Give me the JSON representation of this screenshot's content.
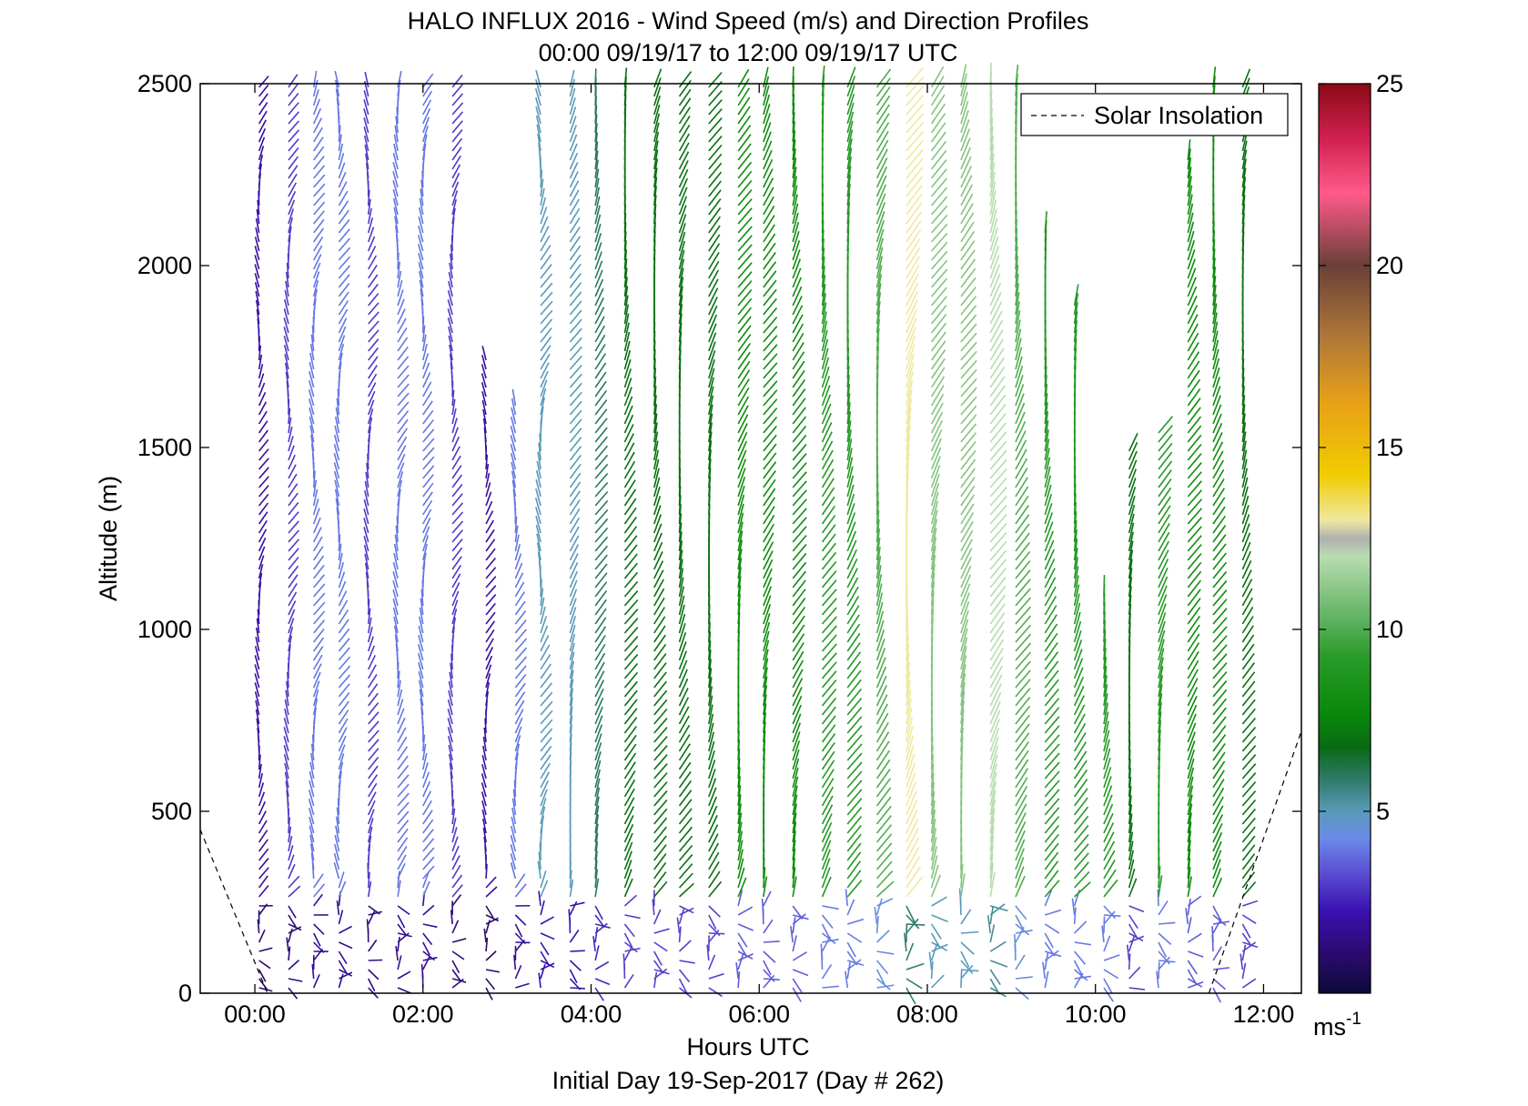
{
  "chart_data": {
    "type": "wind_barb_profile",
    "title": "HALO INFLUX 2016 - Wind Speed (m/s) and Direction Profiles",
    "subtitle": "00:00 09/19/17 to 12:00 09/19/17  UTC",
    "xlabel": "Hours UTC",
    "ylabel": "Altitude (m)",
    "footer": "Initial Day 19-Sep-2017 (Day # 262)",
    "xlim": [
      -0.65,
      12.45
    ],
    "ylim": [
      0,
      2500
    ],
    "x_ticks": [
      {
        "value": 0,
        "label": "00:00"
      },
      {
        "value": 2,
        "label": "02:00"
      },
      {
        "value": 4,
        "label": "04:00"
      },
      {
        "value": 6,
        "label": "06:00"
      },
      {
        "value": 8,
        "label": "08:00"
      },
      {
        "value": 10,
        "label": "10:00"
      },
      {
        "value": 12,
        "label": "12:00"
      }
    ],
    "y_ticks": [
      0,
      500,
      1000,
      1500,
      2000,
      2500
    ],
    "legend": {
      "label": "Solar Insolation",
      "position": "top-right"
    },
    "colorbar": {
      "unit_base": "ms",
      "unit_exp": "-1",
      "range": [
        0,
        25
      ],
      "ticks": [
        5,
        10,
        15,
        20,
        25
      ]
    },
    "solar_insolation": {
      "morning": [
        [
          -0.65,
          450
        ],
        [
          0.15,
          0
        ]
      ],
      "evening": [
        [
          11.35,
          0
        ],
        [
          12.45,
          720
        ]
      ]
    },
    "profile_times": [
      0.05,
      0.4,
      0.7,
      1.0,
      1.35,
      1.7,
      2.0,
      2.35,
      2.75,
      3.1,
      3.4,
      3.75,
      4.05,
      4.4,
      4.75,
      5.05,
      5.4,
      5.75,
      6.05,
      6.4,
      6.75,
      7.05,
      7.4,
      7.75,
      8.05,
      8.4,
      8.75,
      9.05,
      9.4,
      9.75,
      10.1,
      10.4,
      10.75,
      11.1,
      11.4,
      11.75
    ],
    "wind_speed_ms_by_profile": [
      2,
      3,
      4,
      4,
      3,
      4,
      4,
      3,
      2,
      4,
      5,
      5,
      6,
      7,
      7,
      7,
      7,
      8,
      8,
      8,
      9,
      9,
      10,
      13,
      11,
      11,
      12,
      10,
      9,
      9,
      9,
      7,
      9,
      8,
      8,
      7
    ],
    "wind_direction_notes": "Calm and variable below ~250 m; above it, winds blow mostly from the west/southwest with speed increasing with height"
  },
  "colors": {
    "frame": "#000000",
    "insolation_line": "#000000"
  }
}
